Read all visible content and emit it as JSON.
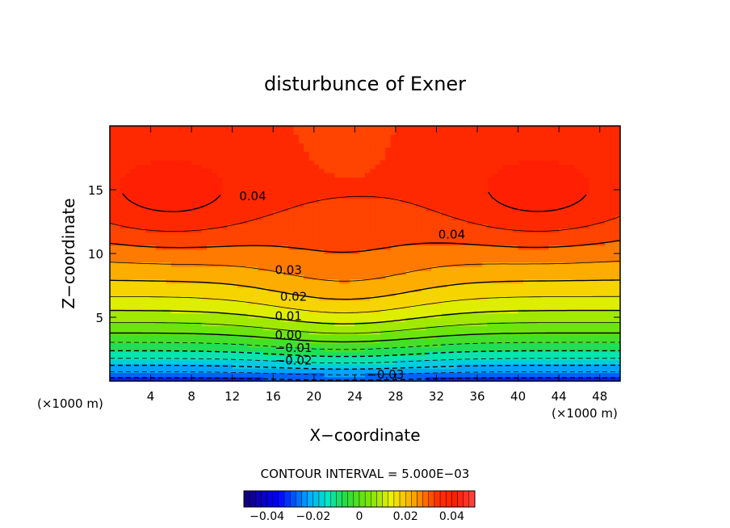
{
  "chart_data": {
    "type": "heatmap",
    "title": "disturbunce of Exner",
    "xlabel": "X−coordinate",
    "ylabel": "Z−coordinate",
    "x_unit_left": "(×1000 m)",
    "x_unit_right": "(×1000 m)",
    "xlim": [
      0,
      50
    ],
    "ylim": [
      0,
      20
    ],
    "x_ticks": [
      "4",
      "8",
      "12",
      "16",
      "20",
      "24",
      "28",
      "32",
      "36",
      "40",
      "44",
      "48"
    ],
    "y_ticks": [
      "5",
      "10",
      "15"
    ],
    "contour_interval_label": "CONTOUR INTERVAL = 5.000E−03",
    "contour_interval": 0.005,
    "contour_labels": [
      {
        "text": "0.04",
        "x": 14,
        "z": 14.5
      },
      {
        "text": "0.04",
        "x": 33.5,
        "z": 11.5
      },
      {
        "text": "0.03",
        "x": 17.5,
        "z": 8.7
      },
      {
        "text": "0.02",
        "x": 18,
        "z": 6.6
      },
      {
        "text": "0.01",
        "x": 17.5,
        "z": 5.1
      },
      {
        "text": "0.00",
        "x": 17.5,
        "z": 3.6
      },
      {
        "text": "−0.01",
        "x": 18,
        "z": 2.6
      },
      {
        "text": "−0.02",
        "x": 18,
        "z": 1.6
      },
      {
        "text": "−0.03",
        "x": 27,
        "z": 0.5
      }
    ],
    "colorbar": {
      "range": [
        -0.05,
        0.05
      ],
      "tick_labels": [
        "−0.04",
        "−0.02",
        "0",
        "0.02",
        "0.04"
      ],
      "tick_values": [
        -0.04,
        -0.02,
        0,
        0.02,
        0.04
      ]
    },
    "field": {
      "description_of_shape": "max ~0.045 in upper lobes, min ~-0.03 at bottom center",
      "min": -0.033,
      "max": 0.045
    },
    "colors": {
      "low": "#1a1aff",
      "mid": "#33cc33",
      "high": "#ff2200"
    }
  }
}
